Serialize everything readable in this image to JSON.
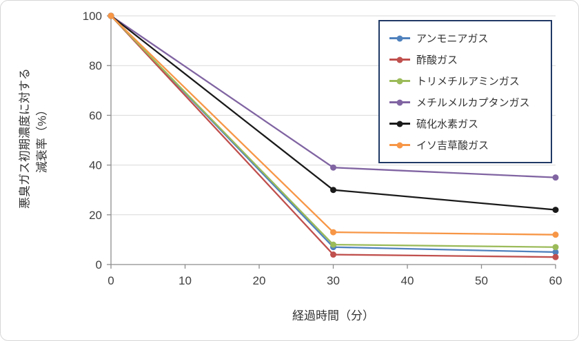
{
  "chart_data": {
    "type": "line",
    "title": "",
    "xlabel": "経過時間（分）",
    "ylabel": "悪臭ガス初期濃度に対する減衰率（%）",
    "ylabel_line1": "悪臭ガス初期濃度に対する",
    "ylabel_line2": "減衰率（%）",
    "x": [
      0,
      30,
      60
    ],
    "xlim": [
      0,
      60
    ],
    "ylim": [
      0,
      100
    ],
    "x_ticks": [
      0,
      10,
      20,
      30,
      40,
      50,
      60
    ],
    "y_ticks": [
      0,
      20,
      40,
      60,
      80,
      100
    ],
    "grid": "horizontal",
    "legend_position": "top-right",
    "colors": {
      "axis": "#8C8C8C",
      "gridline": "#D9D9D9",
      "tick_text": "#404040",
      "legend_border": "#1F3864",
      "background": "#FFFFFF"
    },
    "series": [
      {
        "id": "ammonia-gas",
        "name": "アンモニアガス",
        "color": "#4F81BD",
        "values": [
          100,
          7,
          5
        ]
      },
      {
        "id": "acetic-acid-gas",
        "name": "酢酸ガス",
        "color": "#C0504D",
        "values": [
          100,
          4,
          3
        ]
      },
      {
        "id": "trimethylamine-gas",
        "name": "トリメチルアミンガス",
        "color": "#9BBB59",
        "values": [
          100,
          8,
          7
        ]
      },
      {
        "id": "methyl-mercaptan-gas",
        "name": "メチルメルカプタンガス",
        "color": "#8064A2",
        "values": [
          100,
          39,
          35
        ]
      },
      {
        "id": "hydrogen-sulfide-gas",
        "name": "硫化水素ガス",
        "color": "#1A1A1A",
        "values": [
          100,
          30,
          22
        ]
      },
      {
        "id": "isovaleric-acid-gas",
        "name": "イソ吉草酸ガス",
        "color": "#F79646",
        "values": [
          100,
          13,
          12
        ]
      }
    ]
  }
}
